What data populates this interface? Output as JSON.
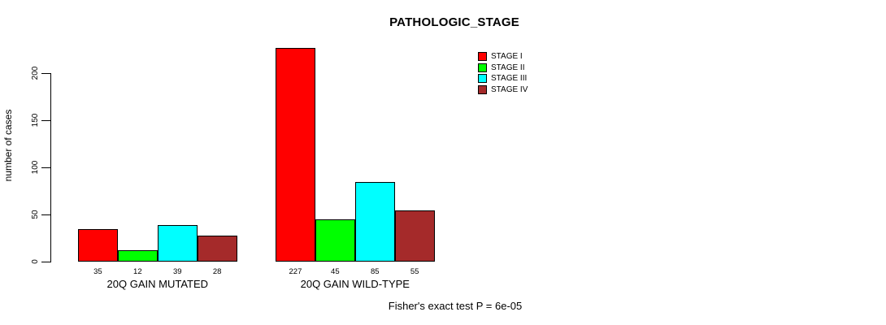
{
  "chart_data": {
    "type": "bar",
    "title": "PATHOLOGIC_STAGE",
    "ylabel": "number of cases",
    "xlabel": "",
    "ylim": [
      0,
      230
    ],
    "yticks": [
      0,
      50,
      100,
      150,
      200
    ],
    "categories": [
      "20Q GAIN MUTATED",
      "20Q GAIN WILD-TYPE"
    ],
    "series": [
      {
        "name": "STAGE I",
        "color": "#FF0000",
        "values": [
          35,
          227
        ]
      },
      {
        "name": "STAGE II",
        "color": "#00FF00",
        "values": [
          12,
          45
        ]
      },
      {
        "name": "STAGE III",
        "color": "#00FFFF",
        "values": [
          39,
          85
        ]
      },
      {
        "name": "STAGE IV",
        "color": "#A52A2A",
        "values": [
          28,
          55
        ]
      }
    ],
    "show_value_labels": true,
    "annotation": "Fisher's exact test P = 6e-05",
    "legend_position": "top-right",
    "grid": false,
    "bar_border_color": "#000000",
    "axis_color": "#000000",
    "background": "#FFFFFF"
  }
}
